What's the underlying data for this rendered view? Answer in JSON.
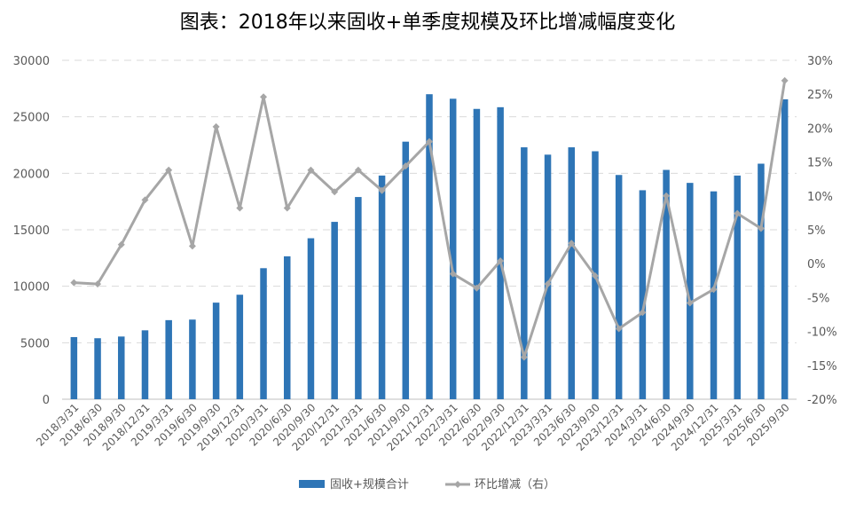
{
  "chart_data": {
    "type": "bar+line",
    "title": "图表：2018年以来固收+单季度规模及环比增减幅度变化",
    "categories": [
      "2018/3/31",
      "2018/6/30",
      "2018/9/30",
      "2018/12/31",
      "2019/3/31",
      "2019/6/30",
      "2019/9/30",
      "2019/12/31",
      "2020/3/31",
      "2020/6/30",
      "2020/9/30",
      "2020/12/31",
      "2021/3/31",
      "2021/6/30",
      "2021/9/30",
      "2021/12/31",
      "2022/3/31",
      "2022/6/30",
      "2022/9/30",
      "2022/12/31",
      "2023/3/31",
      "2023/6/30",
      "2023/9/30",
      "2023/12/31",
      "2024/3/31",
      "2024/6/30",
      "2024/9/30",
      "2024/12/31",
      "2025/3/31",
      "2025/6/30",
      "2025/9/30"
    ],
    "series": [
      {
        "name": "固收+规模合计",
        "type": "bar",
        "axis": "left",
        "color": "#2e75b6",
        "values": [
          5500,
          5400,
          5550,
          6100,
          7000,
          7050,
          8550,
          9250,
          11600,
          12650,
          14250,
          15700,
          17900,
          19800,
          22800,
          27000,
          26600,
          25700,
          25850,
          22300,
          21650,
          22300,
          21950,
          19850,
          18500,
          20300,
          19150,
          18400,
          19800,
          20850,
          26550
        ]
      },
      {
        "name": "环比增减（右）",
        "type": "line",
        "axis": "right",
        "color": "#a6a6a6",
        "values": [
          -2.8,
          -3.0,
          2.8,
          9.4,
          13.8,
          2.6,
          20.2,
          8.2,
          24.6,
          8.2,
          13.8,
          10.6,
          13.8,
          10.8,
          14.4,
          18.0,
          -1.5,
          -3.6,
          0.4,
          -13.8,
          -3.0,
          3.0,
          -1.8,
          -9.6,
          -7.2,
          10.0,
          -5.8,
          -3.8,
          7.4,
          5.2,
          27.0
        ]
      }
    ],
    "yleft": {
      "ylim": [
        0,
        30000
      ],
      "ticks": [
        "0",
        "5000",
        "10000",
        "15000",
        "20000",
        "25000",
        "30000"
      ]
    },
    "yright": {
      "ylim": [
        -20,
        30
      ],
      "ticks": [
        "-20%",
        "-15%",
        "-10%",
        "-5%",
        "0%",
        "5%",
        "10%",
        "15%",
        "20%",
        "25%",
        "30%"
      ]
    },
    "legend": {
      "position": "bottom-center",
      "bar_label": "固收+规模合计",
      "line_label": "环比增减（右）"
    }
  }
}
